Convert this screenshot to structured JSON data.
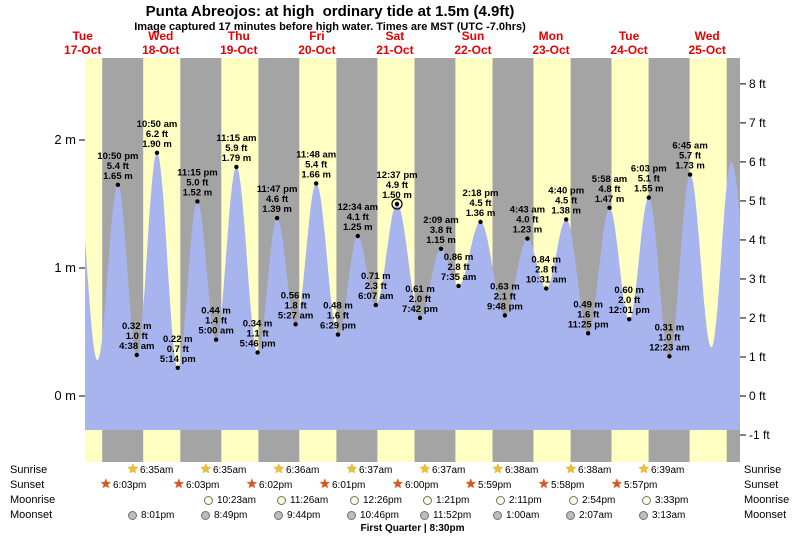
{
  "title": "Punta Abreojos: at high  ordinary tide at 1.5m (4.9ft)",
  "subtitle": "Image captured 17 minutes before high water. Times are MST (UTC -7.0hrs)",
  "colors": {
    "day_band": "#ffffc4",
    "night_band": "#a4a4a4",
    "tide_fill": "#a8b4ee",
    "day_label": "#e80000",
    "sunrise_star": "#f2c418",
    "sunset_star": "#e0551e",
    "moonrise_fill": "#ffffd9",
    "moonset_fill": "#bdbdbd"
  },
  "daylight": {
    "sunrise_h": 6.6,
    "sunset_h": 18.0
  },
  "days": [
    {
      "dow": "Tue",
      "date": "17-Oct"
    },
    {
      "dow": "Wed",
      "date": "18-Oct"
    },
    {
      "dow": "Thu",
      "date": "19-Oct"
    },
    {
      "dow": "Fri",
      "date": "20-Oct"
    },
    {
      "dow": "Sat",
      "date": "21-Oct"
    },
    {
      "dow": "Sun",
      "date": "22-Oct"
    },
    {
      "dow": "Mon",
      "date": "23-Oct"
    },
    {
      "dow": "Tue",
      "date": "24-Oct"
    },
    {
      "dow": "Wed",
      "date": "25-Oct"
    }
  ],
  "chart_data": {
    "type": "area",
    "title": "Punta Abreojos tide height, Oct 17-25",
    "x_unit": "hours since Tue 17-Oct 00:00 MST",
    "ylim_m": [
      -0.55,
      2.65
    ],
    "y_axis_left": {
      "unit": "m",
      "ticks": [
        {
          "v": 0,
          "label": "0 m"
        },
        {
          "v": 1,
          "label": "1 m"
        },
        {
          "v": 2,
          "label": "2 m"
        }
      ]
    },
    "y_axis_right": {
      "unit": "ft",
      "ticks": [
        {
          "v": -1,
          "label": "-1 ft"
        },
        {
          "v": 0,
          "label": "0 ft"
        },
        {
          "v": 1,
          "label": "1 ft"
        },
        {
          "v": 2,
          "label": "2 ft"
        },
        {
          "v": 3,
          "label": "3 ft"
        },
        {
          "v": 4,
          "label": "4 ft"
        },
        {
          "v": 5,
          "label": "5 ft"
        },
        {
          "v": 6,
          "label": "6 ft"
        },
        {
          "v": 7,
          "label": "7 ft"
        },
        {
          "v": 8,
          "label": "8 ft"
        }
      ]
    },
    "extremes": [
      {
        "t": 10.2,
        "m": 1.7
      },
      {
        "t": 16.5,
        "m": 0.28
      },
      {
        "t": 22.83,
        "m": 1.65,
        "kind": "high",
        "lines": [
          "10:50 pm",
          "5.4 ft",
          "1.65 m"
        ]
      },
      {
        "t": 28.63,
        "m": 0.32,
        "kind": "low",
        "lines": [
          "0.32 m",
          "1.0 ft",
          "4:38 am"
        ]
      },
      {
        "t": 34.83,
        "m": 1.9,
        "kind": "high",
        "lines": [
          "10:50 am",
          "6.2 ft",
          "1.90 m"
        ]
      },
      {
        "t": 41.23,
        "m": 0.22,
        "kind": "low",
        "lines": [
          "0.22 m",
          "0.7 ft",
          "5:14 pm"
        ]
      },
      {
        "t": 47.25,
        "m": 1.52,
        "kind": "high",
        "lines": [
          "11:15 pm",
          "5.0 ft",
          "1.52 m"
        ]
      },
      {
        "t": 53.0,
        "m": 0.44,
        "kind": "low",
        "lines": [
          "0.44 m",
          "1.4 ft",
          "5:00 am"
        ]
      },
      {
        "t": 59.25,
        "m": 1.79,
        "kind": "high",
        "lines": [
          "11:15 am",
          "5.9 ft",
          "1.79 m"
        ]
      },
      {
        "t": 65.77,
        "m": 0.34,
        "kind": "low",
        "lines": [
          "0.34 m",
          "1.1 ft",
          "5:46 pm"
        ]
      },
      {
        "t": 71.78,
        "m": 1.39,
        "kind": "high",
        "lines": [
          "11:47 pm",
          "4.6 ft",
          "1.39 m"
        ]
      },
      {
        "t": 77.45,
        "m": 0.56,
        "kind": "low",
        "lines": [
          "0.56 m",
          "1.8 ft",
          "5:27 am"
        ]
      },
      {
        "t": 83.8,
        "m": 1.66,
        "kind": "high",
        "lines": [
          "11:48 am",
          "5.4 ft",
          "1.66 m"
        ]
      },
      {
        "t": 90.48,
        "m": 0.48,
        "kind": "low",
        "lines": [
          "0.48 m",
          "1.6 ft",
          "6:29 pm"
        ]
      },
      {
        "t": 96.57,
        "m": 1.25,
        "kind": "high",
        "lines": [
          "12:34 am",
          "4.1 ft",
          "1.25 m"
        ]
      },
      {
        "t": 102.12,
        "m": 0.71,
        "kind": "low",
        "lines": [
          "0.71 m",
          "2.3 ft",
          "6:07 am"
        ]
      },
      {
        "t": 108.62,
        "m": 1.5,
        "kind": "high",
        "current": true,
        "lines": [
          "12:37 pm",
          "4.9 ft",
          "1.50 m"
        ]
      },
      {
        "t": 115.7,
        "m": 0.61,
        "kind": "low",
        "lines": [
          "0.61 m",
          "2.0 ft",
          "7:42 pm"
        ]
      },
      {
        "t": 122.15,
        "m": 1.15,
        "kind": "high",
        "lines": [
          "2:09 am",
          "3.8 ft",
          "1.15 m"
        ]
      },
      {
        "t": 127.58,
        "m": 0.86,
        "kind": "low",
        "lines": [
          "0.86 m",
          "2.8 ft",
          "7:35 am"
        ]
      },
      {
        "t": 134.3,
        "m": 1.36,
        "kind": "high",
        "lines": [
          "2:18 pm",
          "4.5 ft",
          "1.36 m"
        ]
      },
      {
        "t": 141.8,
        "m": 0.63,
        "kind": "low",
        "lines": [
          "0.63 m",
          "2.1 ft",
          "9:48 pm"
        ]
      },
      {
        "t": 148.72,
        "m": 1.23,
        "kind": "high",
        "lines": [
          "4:43 am",
          "4.0 ft",
          "1.23 m"
        ]
      },
      {
        "t": 154.52,
        "m": 0.84,
        "kind": "low",
        "lines": [
          "0.84 m",
          "2.8 ft",
          "10:31 am"
        ]
      },
      {
        "t": 160.67,
        "m": 1.38,
        "kind": "high",
        "lines": [
          "4:40 pm",
          "4.5 ft",
          "1.38 m"
        ]
      },
      {
        "t": 167.42,
        "m": 0.49,
        "kind": "low",
        "lines": [
          "0.49 m",
          "1.6 ft",
          "11:25 pm"
        ]
      },
      {
        "t": 173.97,
        "m": 1.47,
        "kind": "high",
        "lines": [
          "5:58 am",
          "4.8 ft",
          "1.47 m"
        ]
      },
      {
        "t": 180.02,
        "m": 0.6,
        "kind": "low",
        "lines": [
          "0.60 m",
          "2.0 ft",
          "12:01 pm"
        ]
      },
      {
        "t": 186.05,
        "m": 1.55,
        "kind": "high",
        "lines": [
          "6:03 pm",
          "5.1 ft",
          "1.55 m"
        ]
      },
      {
        "t": 192.38,
        "m": 0.31,
        "kind": "low",
        "lines": [
          "0.31 m",
          "1.0 ft",
          "12:23 am"
        ]
      },
      {
        "t": 198.75,
        "m": 1.73,
        "kind": "high",
        "lines": [
          "6:45 am",
          "5.7 ft",
          "1.73 m"
        ]
      },
      {
        "t": 205.3,
        "m": 0.38
      },
      {
        "t": 211.4,
        "m": 1.83
      },
      {
        "t": 218.5,
        "m": 0.4
      }
    ]
  },
  "astro": {
    "rows": [
      {
        "id": "sunrise",
        "label": "Sunrise",
        "times": [
          "6:35am",
          "6:35am",
          "6:36am",
          "6:37am",
          "6:37am",
          "6:38am",
          "6:38am",
          "6:39am"
        ]
      },
      {
        "id": "sunset",
        "label": "Sunset",
        "times": [
          "6:03pm",
          "6:03pm",
          "6:02pm",
          "6:01pm",
          "6:00pm",
          "5:59pm",
          "5:58pm",
          "5:57pm"
        ]
      },
      {
        "id": "moonrise",
        "label": "Moonrise",
        "times": [
          "10:23am",
          "11:26am",
          "12:26pm",
          "1:21pm",
          "2:11pm",
          "2:54pm",
          "3:33pm"
        ]
      },
      {
        "id": "moonset",
        "label": "Moonset",
        "times": [
          "8:01pm",
          "8:49pm",
          "9:44pm",
          "10:46pm",
          "11:52pm",
          "1:00am",
          "2:07am",
          "3:13am"
        ]
      }
    ],
    "footer": "First Quarter | 8:30pm"
  }
}
